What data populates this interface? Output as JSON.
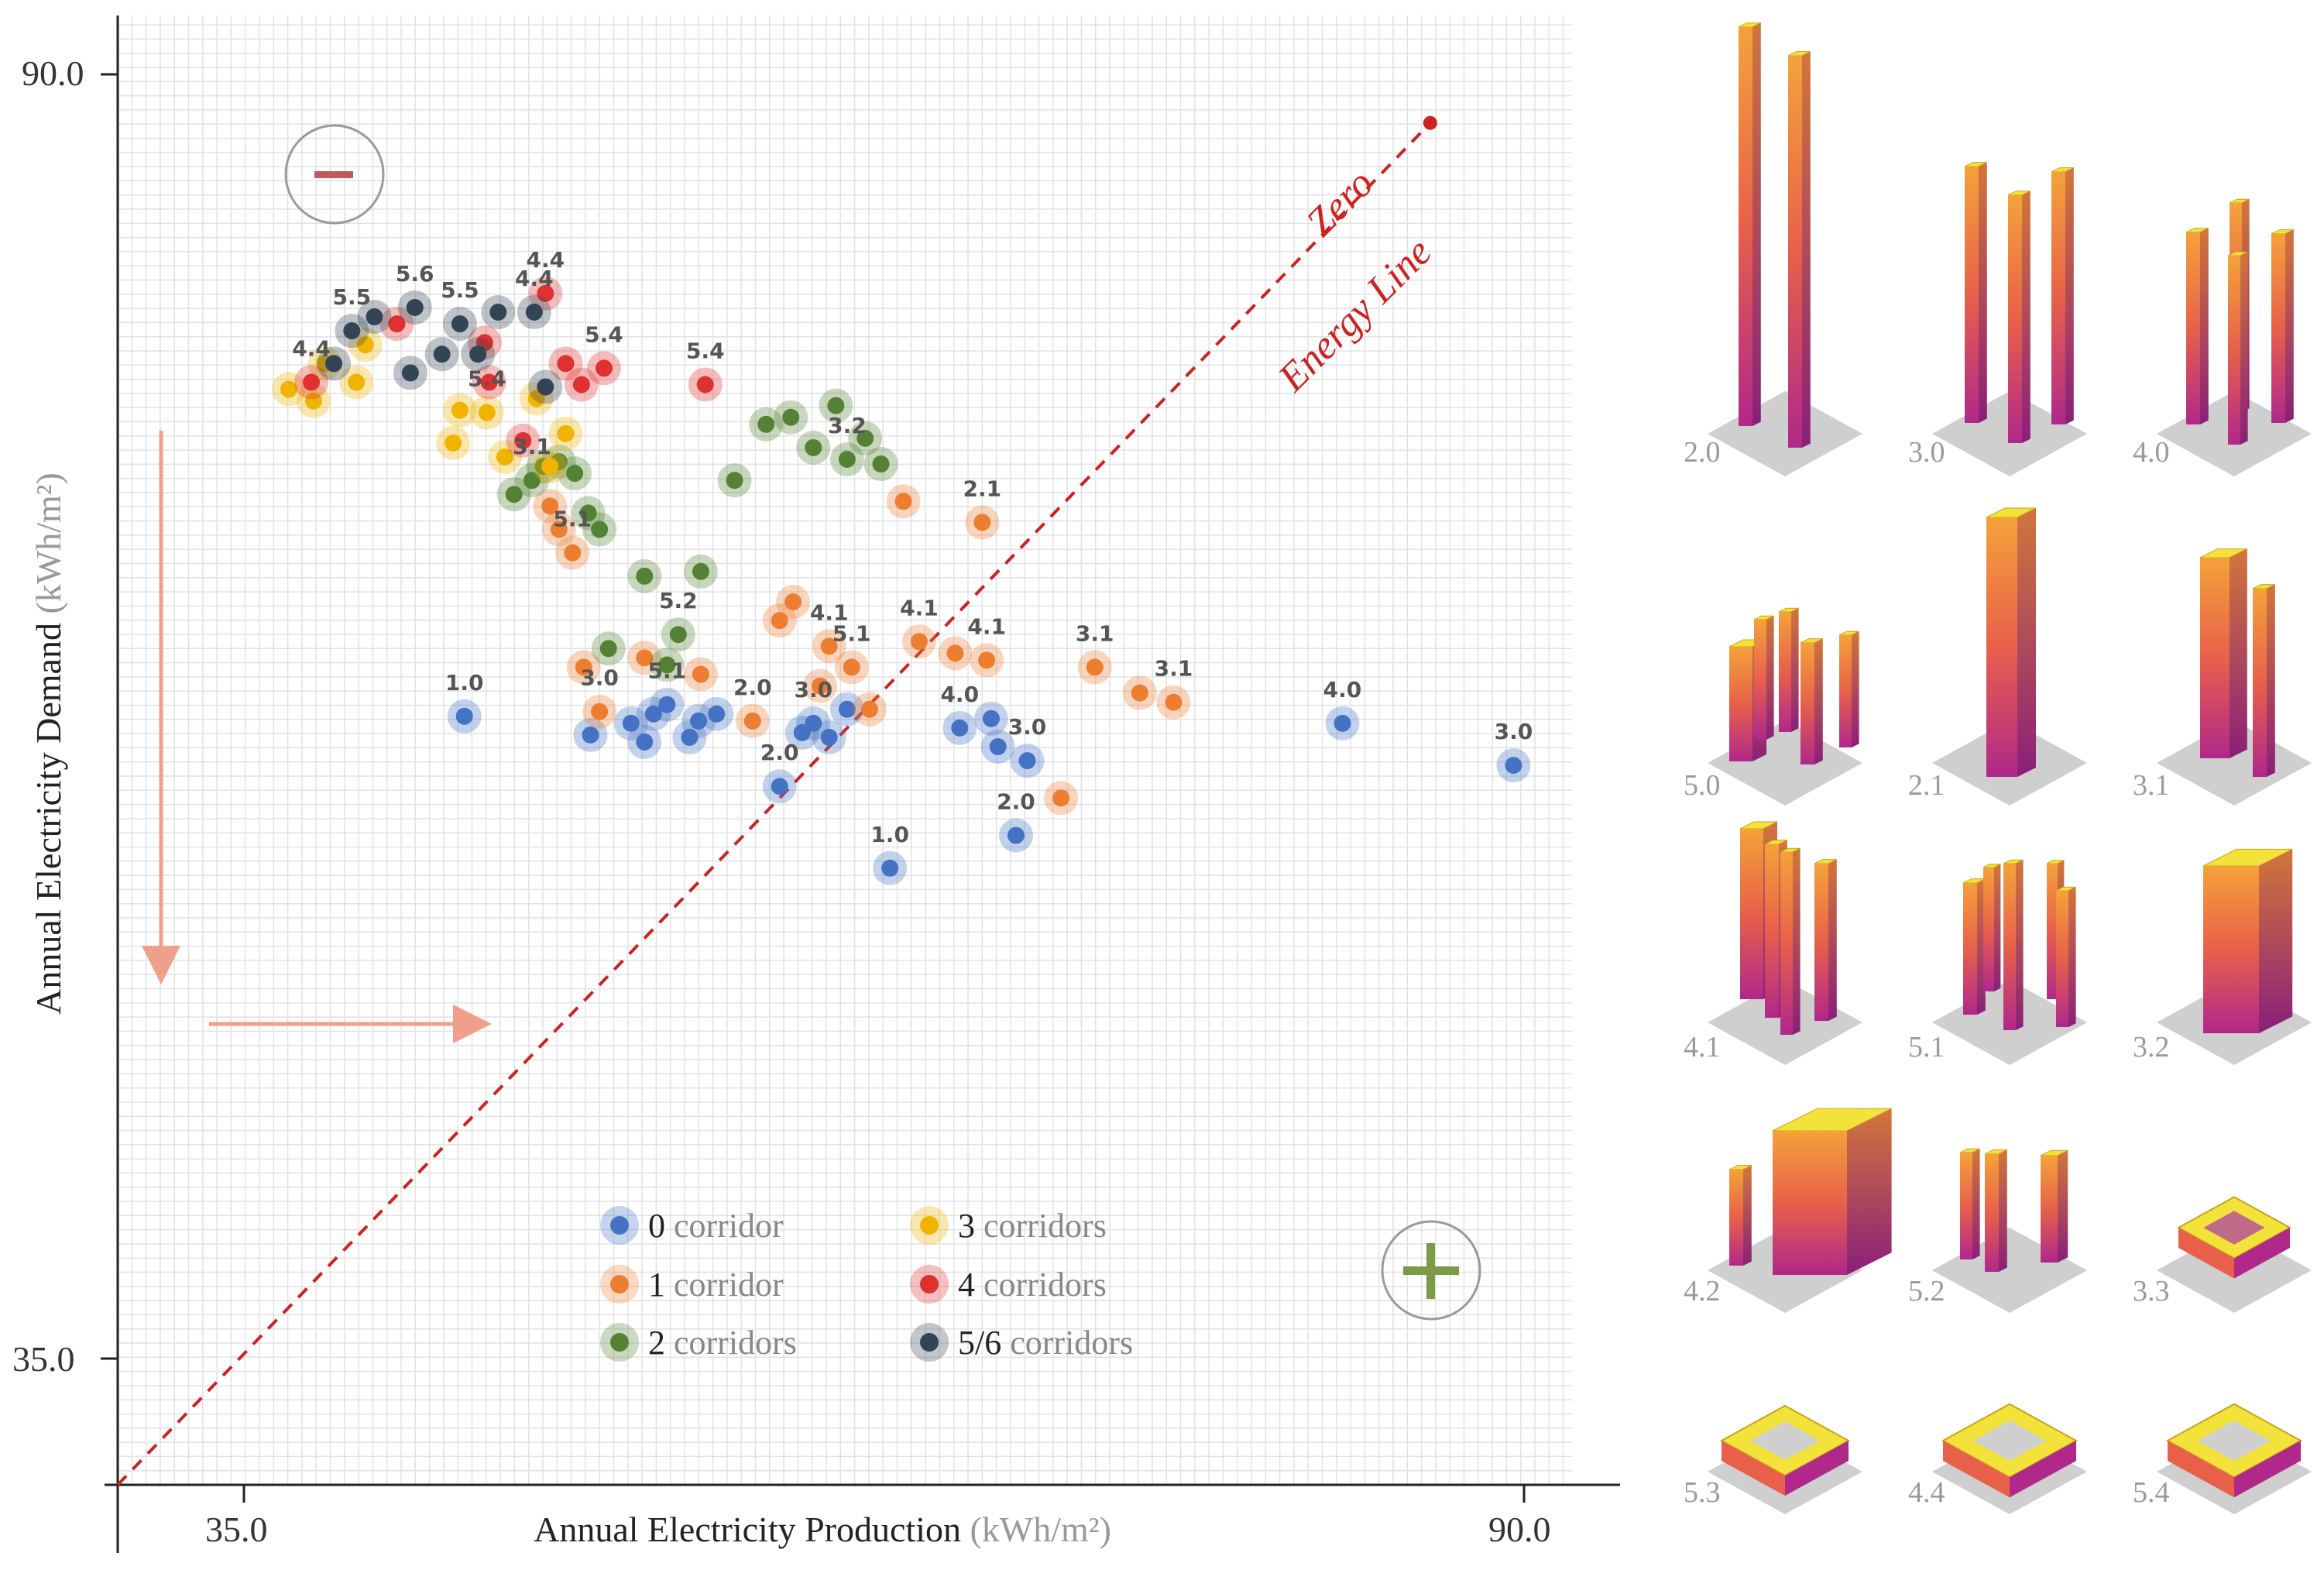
{
  "chart_data": {
    "type": "scatter",
    "title": "",
    "xlabel": "Annual Electricity Production",
    "xlabel_unit": "(kWh/m²)",
    "ylabel": "Annual Electricity Demand",
    "ylabel_unit": "(kWh/m²)",
    "xlim": [
      29.6,
      94.2
    ],
    "ylim": [
      29.6,
      92.5
    ],
    "x_ticks": [
      "35.0",
      "90.0"
    ],
    "y_ticks": [
      "90.0",
      "35.0"
    ],
    "grid": true,
    "zero_energy_line": {
      "label_line1": "Zero",
      "label_line2": "Energy Line",
      "color": "#cc2222"
    },
    "quadrant_marks": {
      "minus": "−",
      "plus": "+"
    },
    "legend_position": "bottom-center",
    "series": [
      {
        "name": "0 corridor",
        "color": "#4472c4",
        "points": [
          {
            "x": 45.0,
            "y": 62.5,
            "label": "1.0"
          },
          {
            "x": 50.6,
            "y": 61.7
          },
          {
            "x": 52.4,
            "y": 62.2
          },
          {
            "x": 53.0,
            "y": 61.4
          },
          {
            "x": 53.4,
            "y": 62.6
          },
          {
            "x": 54.0,
            "y": 63.0,
            "label": "5.1"
          },
          {
            "x": 55.0,
            "y": 61.6
          },
          {
            "x": 55.4,
            "y": 62.3
          },
          {
            "x": 56.2,
            "y": 62.6
          },
          {
            "x": 59.0,
            "y": 59.5,
            "label": "2.0"
          },
          {
            "x": 60.0,
            "y": 61.8
          },
          {
            "x": 60.5,
            "y": 62.2,
            "label": "3.0"
          },
          {
            "x": 61.2,
            "y": 61.6
          },
          {
            "x": 62.0,
            "y": 62.8
          },
          {
            "x": 63.9,
            "y": 56.0,
            "label": "1.0"
          },
          {
            "x": 67.0,
            "y": 62.0,
            "label": "4.0"
          },
          {
            "x": 68.4,
            "y": 62.4
          },
          {
            "x": 68.7,
            "y": 61.2
          },
          {
            "x": 69.5,
            "y": 57.4,
            "label": "2.0"
          },
          {
            "x": 70.0,
            "y": 60.6,
            "label": "3.0"
          },
          {
            "x": 84.0,
            "y": 62.2,
            "label": "4.0"
          },
          {
            "x": 91.6,
            "y": 60.4,
            "label": "3.0"
          }
        ]
      },
      {
        "name": "1 corridor",
        "color": "#ed7d31",
        "points": [
          {
            "x": 48.8,
            "y": 71.5
          },
          {
            "x": 49.2,
            "y": 70.5
          },
          {
            "x": 49.8,
            "y": 69.5,
            "label": "5.1"
          },
          {
            "x": 50.3,
            "y": 64.6
          },
          {
            "x": 51.0,
            "y": 62.7,
            "label": "3.0"
          },
          {
            "x": 53.0,
            "y": 65.0
          },
          {
            "x": 55.5,
            "y": 64.3
          },
          {
            "x": 57.8,
            "y": 62.3,
            "label": "2.0"
          },
          {
            "x": 59.0,
            "y": 66.6
          },
          {
            "x": 59.6,
            "y": 67.4
          },
          {
            "x": 60.8,
            "y": 63.8
          },
          {
            "x": 61.2,
            "y": 65.5,
            "label": "4.1"
          },
          {
            "x": 62.2,
            "y": 64.6,
            "label": "5.1"
          },
          {
            "x": 63.0,
            "y": 62.8
          },
          {
            "x": 64.5,
            "y": 71.7
          },
          {
            "x": 65.2,
            "y": 65.7,
            "label": "4.1"
          },
          {
            "x": 66.8,
            "y": 65.2
          },
          {
            "x": 68.0,
            "y": 70.8,
            "label": "2.1"
          },
          {
            "x": 68.2,
            "y": 64.9,
            "label": "4.1"
          },
          {
            "x": 71.5,
            "y": 59.0
          },
          {
            "x": 73.0,
            "y": 64.6,
            "label": "3.1"
          },
          {
            "x": 75.0,
            "y": 63.5
          },
          {
            "x": 76.5,
            "y": 63.1,
            "label": "3.1"
          }
        ]
      },
      {
        "name": "2 corridors",
        "color": "#548235",
        "points": [
          {
            "x": 47.2,
            "y": 72.0
          },
          {
            "x": 48.0,
            "y": 72.6,
            "label": "3.1"
          },
          {
            "x": 48.5,
            "y": 73.2
          },
          {
            "x": 49.2,
            "y": 73.4
          },
          {
            "x": 49.9,
            "y": 72.9
          },
          {
            "x": 50.5,
            "y": 71.2
          },
          {
            "x": 51.0,
            "y": 70.5
          },
          {
            "x": 51.4,
            "y": 65.4
          },
          {
            "x": 53.0,
            "y": 68.5
          },
          {
            "x": 54.0,
            "y": 64.7
          },
          {
            "x": 54.5,
            "y": 66.0,
            "label": "5.2"
          },
          {
            "x": 55.5,
            "y": 68.7
          },
          {
            "x": 57.0,
            "y": 72.6
          },
          {
            "x": 58.4,
            "y": 75.0
          },
          {
            "x": 59.5,
            "y": 75.3
          },
          {
            "x": 60.5,
            "y": 74.0
          },
          {
            "x": 61.5,
            "y": 75.8
          },
          {
            "x": 62.0,
            "y": 73.5,
            "label": "3.2"
          },
          {
            "x": 62.8,
            "y": 74.4
          },
          {
            "x": 63.5,
            "y": 73.3
          }
        ]
      },
      {
        "name": "3 corridors",
        "color": "#f0b400",
        "points": [
          {
            "x": 37.2,
            "y": 76.5
          },
          {
            "x": 38.3,
            "y": 76.0
          },
          {
            "x": 38.8,
            "y": 77.6
          },
          {
            "x": 40.2,
            "y": 76.8
          },
          {
            "x": 40.6,
            "y": 78.4
          },
          {
            "x": 44.5,
            "y": 74.2
          },
          {
            "x": 44.8,
            "y": 75.6
          },
          {
            "x": 46.0,
            "y": 75.5,
            "label": "5.4"
          },
          {
            "x": 46.8,
            "y": 73.6
          },
          {
            "x": 48.2,
            "y": 76.1
          },
          {
            "x": 48.8,
            "y": 73.2
          },
          {
            "x": 49.5,
            "y": 74.6
          }
        ]
      },
      {
        "name": "4 corridors",
        "color": "#e03030",
        "points": [
          {
            "x": 38.2,
            "y": 76.8,
            "label": "4.4"
          },
          {
            "x": 42.0,
            "y": 79.3
          },
          {
            "x": 45.9,
            "y": 78.5
          },
          {
            "x": 46.1,
            "y": 76.8
          },
          {
            "x": 47.6,
            "y": 74.3
          },
          {
            "x": 48.6,
            "y": 80.6,
            "label": "4.4"
          },
          {
            "x": 49.5,
            "y": 77.6
          },
          {
            "x": 50.2,
            "y": 76.7
          },
          {
            "x": 51.2,
            "y": 77.4,
            "label": "5.4"
          },
          {
            "x": 55.7,
            "y": 76.7,
            "label": "5.4"
          }
        ]
      },
      {
        "name": "5/6 corridors",
        "color": "#334455",
        "points": [
          {
            "x": 39.2,
            "y": 77.6
          },
          {
            "x": 40.0,
            "y": 79.0,
            "label": "5.5"
          },
          {
            "x": 41.0,
            "y": 79.6
          },
          {
            "x": 42.6,
            "y": 77.2
          },
          {
            "x": 42.8,
            "y": 80.0,
            "label": "5.6"
          },
          {
            "x": 44.0,
            "y": 78.0
          },
          {
            "x": 44.8,
            "y": 79.3,
            "label": "5.5"
          },
          {
            "x": 45.6,
            "y": 78.0
          },
          {
            "x": 46.5,
            "y": 79.8
          },
          {
            "x": 48.1,
            "y": 79.8,
            "label": "4.4"
          },
          {
            "x": 48.6,
            "y": 76.6
          }
        ]
      }
    ]
  },
  "legend": [
    {
      "number": "0",
      "text": "corridor",
      "color": "#4472c4"
    },
    {
      "number": "3",
      "text": "corridors",
      "color": "#f0b400"
    },
    {
      "number": "1",
      "text": "corridor",
      "color": "#ed7d31"
    },
    {
      "number": "4",
      "text": "corridors",
      "color": "#e03030"
    },
    {
      "number": "2",
      "text": "corridors",
      "color": "#548235"
    },
    {
      "number": "5/6",
      "text": "corridors",
      "color": "#334455"
    }
  ],
  "typologies": [
    "2.0",
    "3.0",
    "4.0",
    "5.0",
    "2.1",
    "3.1",
    "4.1",
    "5.1",
    "3.2",
    "4.2",
    "5.2",
    "3.3",
    "5.3",
    "4.4",
    "5.4"
  ]
}
